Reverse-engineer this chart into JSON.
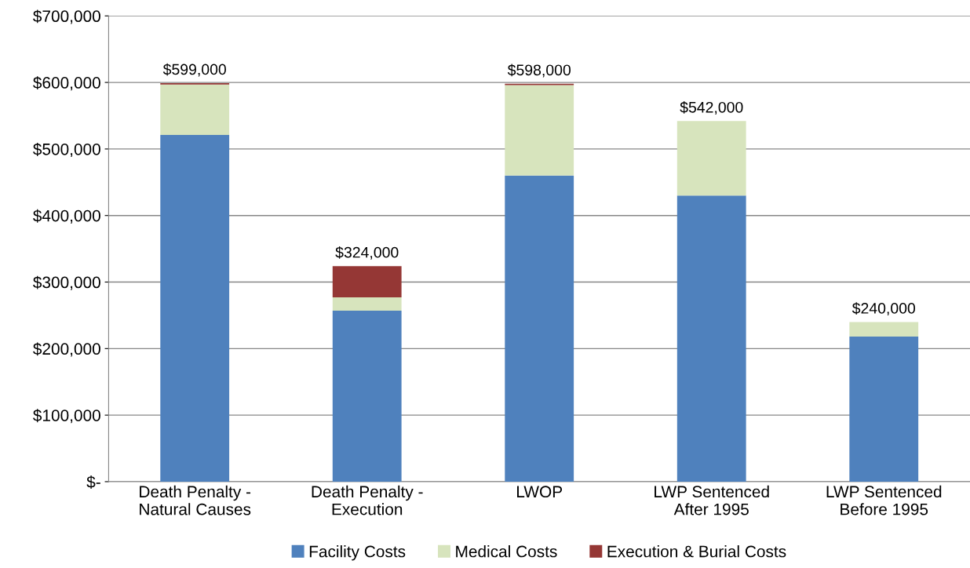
{
  "chart_data": {
    "type": "bar",
    "stacked": true,
    "categories": [
      "Death Penalty -\nNatural Causes",
      "Death Penalty -\nExecution",
      "LWOP",
      "LWP Sentenced\nAfter 1995",
      "LWP Sentenced\nBefore 1995"
    ],
    "series": [
      {
        "name": "Facility Costs",
        "color": "#4f81bd",
        "values": [
          521000,
          257000,
          460000,
          430000,
          218000
        ]
      },
      {
        "name": "Medical Costs",
        "color": "#d7e4bd",
        "values": [
          76000,
          20000,
          136000,
          112000,
          22000
        ]
      },
      {
        "name": "Execution & Burial Costs",
        "color": "#953735",
        "values": [
          2000,
          47000,
          2000,
          0,
          0
        ]
      }
    ],
    "totals": [
      "$599,000",
      "$324,000",
      "$598,000",
      "$542,000",
      "$240,000"
    ],
    "ylim": [
      0,
      700000
    ],
    "yticks": [
      {
        "value": 0,
        "label": "$-"
      },
      {
        "value": 100000,
        "label": "$100,000"
      },
      {
        "value": 200000,
        "label": "$200,000"
      },
      {
        "value": 300000,
        "label": "$300,000"
      },
      {
        "value": 400000,
        "label": "$400,000"
      },
      {
        "value": 500000,
        "label": "$500,000"
      },
      {
        "value": 600000,
        "label": "$600,000"
      },
      {
        "value": 700000,
        "label": "$700,000"
      }
    ],
    "grid": "y",
    "legend": "bottom"
  }
}
